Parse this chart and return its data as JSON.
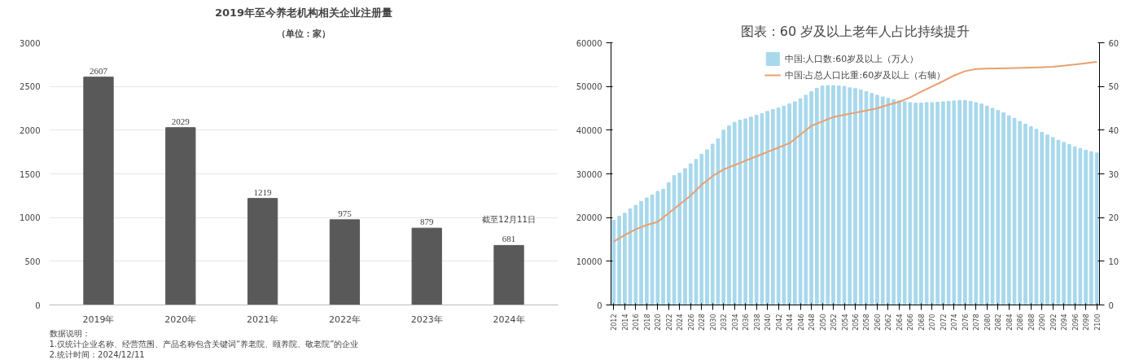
{
  "chart_data": [
    {
      "type": "bar",
      "title": "2019年至今养老机构相关企业注册量",
      "subtitle": "（单位：家）",
      "categories": [
        "2019年",
        "2020年",
        "2021年",
        "2022年",
        "2023年",
        "2024年"
      ],
      "values": [
        2607,
        2029,
        1219,
        975,
        879,
        681
      ],
      "color": "#595959",
      "ylim": [
        0,
        3000
      ],
      "yticks": [
        0,
        500,
        1000,
        1500,
        2000,
        2500,
        3000
      ],
      "grid": "y",
      "data_labels": true,
      "annotations": [
        "截至12月11日",
        "数据说明：",
        "1.仅统计企业名称、经营范围、产品名称包含关键词“养老院、颐养院、敬老院”的企业",
        "2.统计时间：2024/12/11"
      ]
    },
    {
      "type": "bar",
      "title": "图表：60 岁及以上老年人占比持续提升",
      "x": [
        2012,
        2013,
        2014,
        2015,
        2016,
        2017,
        2018,
        2019,
        2020,
        2021,
        2022,
        2023,
        2024,
        2025,
        2026,
        2027,
        2028,
        2029,
        2030,
        2031,
        2032,
        2033,
        2034,
        2035,
        2036,
        2037,
        2038,
        2039,
        2040,
        2041,
        2042,
        2043,
        2044,
        2045,
        2046,
        2047,
        2048,
        2049,
        2050,
        2051,
        2052,
        2053,
        2054,
        2055,
        2056,
        2057,
        2058,
        2059,
        2060,
        2061,
        2062,
        2063,
        2064,
        2065,
        2066,
        2067,
        2068,
        2069,
        2070,
        2071,
        2072,
        2073,
        2074,
        2075,
        2076,
        2077,
        2078,
        2079,
        2080,
        2081,
        2082,
        2083,
        2084,
        2085,
        2086,
        2087,
        2088,
        2089,
        2090,
        2091,
        2092,
        2093,
        2094,
        2095,
        2096,
        2097,
        2098,
        2099,
        2100
      ],
      "series": [
        {
          "name": "中国:人口数:60岁及以上（万人）",
          "type": "bar",
          "color": "#a8d8ec",
          "values": [
            19400,
            20300,
            21000,
            22000,
            22800,
            23700,
            24500,
            25200,
            26000,
            26500,
            28000,
            29600,
            30200,
            31200,
            32300,
            33300,
            34500,
            35500,
            36800,
            38000,
            40000,
            41000,
            41800,
            42300,
            42600,
            43000,
            43400,
            43800,
            44300,
            44700,
            45100,
            45500,
            46000,
            46500,
            47200,
            48000,
            48800,
            49600,
            50100,
            50200,
            50200,
            50100,
            50000,
            49700,
            49500,
            49200,
            48800,
            48400,
            48000,
            47600,
            47300,
            47000,
            46700,
            46500,
            46300,
            46200,
            46200,
            46300,
            46300,
            46400,
            46500,
            46600,
            46700,
            46800,
            46800,
            46600,
            46300,
            46000,
            45500,
            45000,
            44500,
            44000,
            43300,
            42700,
            42000,
            41400,
            40800,
            40200,
            39500,
            38900,
            38300,
            37700,
            37200,
            36700,
            36200,
            35800,
            35400,
            35100,
            34800
          ]
        },
        {
          "name": "中国:占总人口比重:60岁及以上（右轴）",
          "type": "line",
          "axis": "y2",
          "color": "#e8a070",
          "x": [
            2012,
            2014,
            2016,
            2018,
            2020,
            2022,
            2024,
            2026,
            2028,
            2030,
            2032,
            2034,
            2036,
            2038,
            2040,
            2042,
            2044,
            2046,
            2048,
            2050,
            2052,
            2054,
            2056,
            2058,
            2060,
            2062,
            2064,
            2066,
            2068,
            2070,
            2072,
            2074,
            2076,
            2078,
            2080,
            2084,
            2088,
            2092,
            2096,
            2100
          ],
          "values": [
            14.5,
            16,
            17.3,
            18.3,
            19,
            21,
            23,
            25,
            27.5,
            29.5,
            31,
            32,
            33,
            34,
            35,
            36,
            37,
            39,
            41,
            42,
            43,
            43.5,
            44,
            44.5,
            45,
            45.8,
            46.5,
            47.5,
            48.8,
            50,
            51.2,
            52.5,
            53.5,
            54,
            54.1,
            54.2,
            54.3,
            54.5,
            55,
            55.6
          ]
        }
      ],
      "xlim": [
        2011.5,
        2100.5
      ],
      "xticks": [
        2012,
        2014,
        2016,
        2018,
        2020,
        2022,
        2024,
        2026,
        2028,
        2030,
        2032,
        2034,
        2036,
        2038,
        2040,
        2042,
        2044,
        2046,
        2048,
        2050,
        2052,
        2054,
        2056,
        2058,
        2060,
        2062,
        2064,
        2066,
        2068,
        2070,
        2072,
        2074,
        2076,
        2078,
        2080,
        2082,
        2084,
        2086,
        2088,
        2090,
        2092,
        2094,
        2096,
        2098,
        2100
      ],
      "ylim": [
        0,
        60000
      ],
      "yticks": [
        0,
        10000,
        20000,
        30000,
        40000,
        50000,
        60000
      ],
      "y2lim": [
        0,
        60
      ],
      "y2ticks": [
        0,
        10,
        20,
        30,
        40,
        50,
        60
      ],
      "legend": "top",
      "grid": false
    }
  ]
}
